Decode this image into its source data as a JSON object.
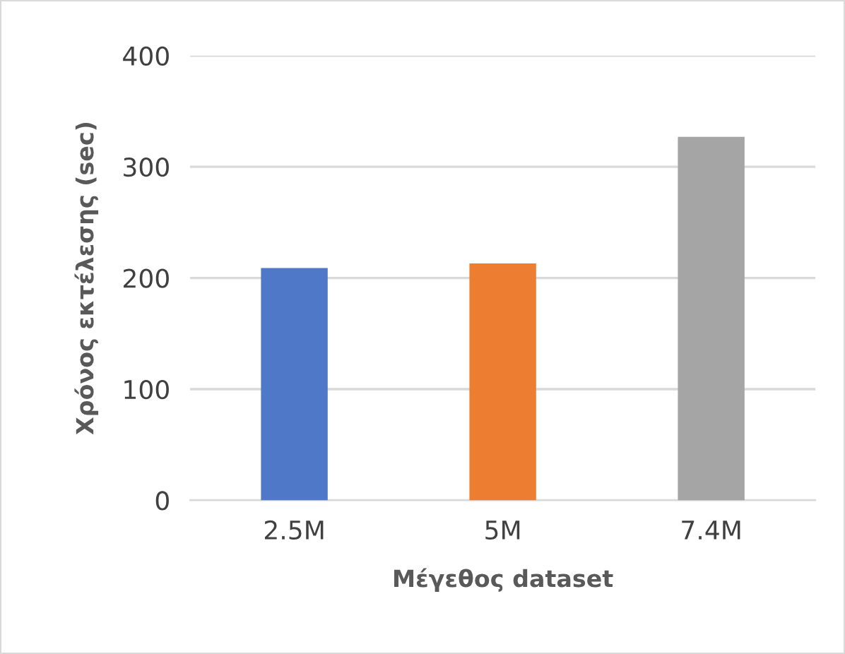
{
  "chart_data": {
    "type": "bar",
    "xlabel": "Μέγεθος dataset",
    "ylabel": "Χρόνος εκτέλεσης (sec)",
    "categories": [
      "2.5M",
      "5M",
      "7.4M"
    ],
    "values": [
      209,
      213,
      327
    ],
    "colors": [
      "#4f78c8",
      "#ed7d31",
      "#a5a5a5"
    ],
    "ylim": [
      0,
      400
    ],
    "yticks": [
      0,
      100,
      200,
      300,
      400
    ],
    "grid": "y"
  }
}
